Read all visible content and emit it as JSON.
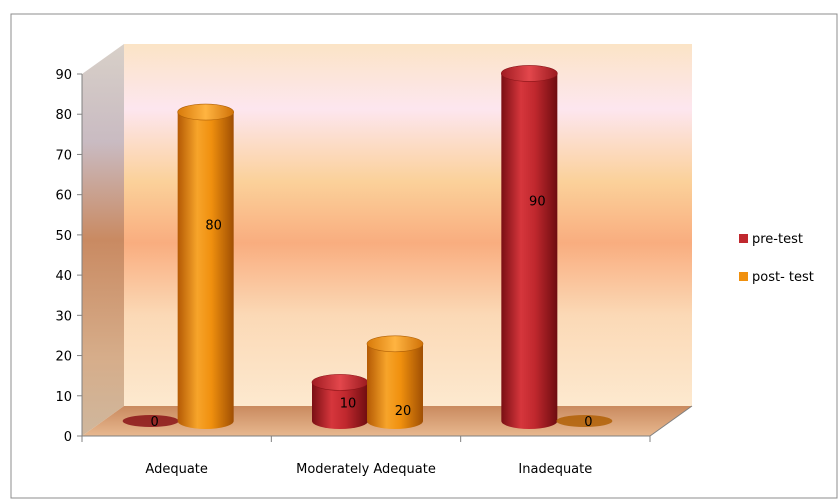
{
  "chart_data": {
    "type": "bar",
    "style": "3d-cylinder",
    "title": "",
    "xlabel": "",
    "ylabel": "",
    "categories": [
      "Adequate",
      "Moderately Adequate",
      "Inadequate"
    ],
    "yticks": [
      "0",
      "10",
      "20",
      "30",
      "40",
      "50",
      "60",
      "70",
      "80",
      "90"
    ],
    "ylim": [
      0,
      90
    ],
    "grid": false,
    "legend_position": "right",
    "series": [
      {
        "name": "pre-test",
        "values": [
          0,
          10,
          90
        ],
        "labels": [
          "0",
          "10",
          "90"
        ],
        "color": "#c0282e"
      },
      {
        "name": "post- test",
        "values": [
          80,
          20,
          0
        ],
        "labels": [
          "80",
          "20",
          "0"
        ],
        "color": "#f0900e"
      }
    ]
  },
  "colors": {
    "frame": "#8c8c8c",
    "back_wall_top": "#fdebd5",
    "back_wall_band": "#f8b07a",
    "floor": "#d8a27a"
  }
}
